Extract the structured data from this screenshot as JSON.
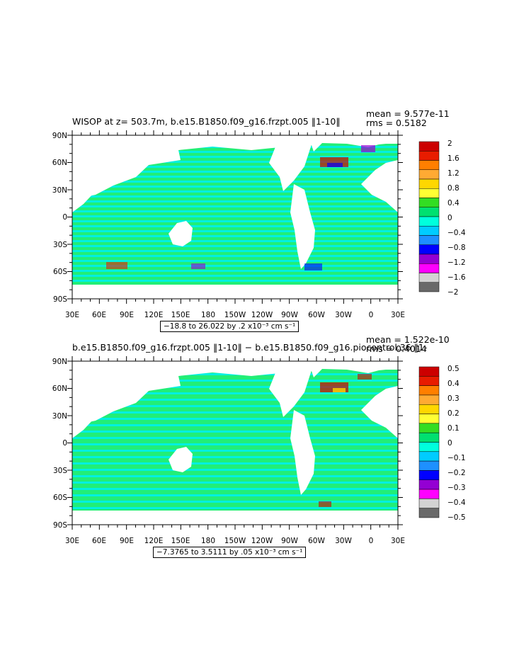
{
  "panels": [
    {
      "title": "WISOP at z= 503.7m, b.e15.B1850.f09_g16.frzpt.005 ‖1-10‖",
      "mean_label": "mean = 9.577e-11",
      "rms_label": "rms = 0.5182",
      "range_label": "−18.8 to 26.022 by .2 x10⁻³ cm s⁻¹",
      "colorbar_labels": [
        "2",
        "1.6",
        "1.2",
        "0.8",
        "0.4",
        "0",
        "−0.4",
        "−0.8",
        "−1.2",
        "−1.6",
        "−2"
      ]
    },
    {
      "title": "b.e15.B1850.f09_g16.frzpt.005 ‖1-10‖ − b.e15.B1850.f09_g16.piocontrol.36 ‖1-",
      "mean_label": "mean = 1.522e-10",
      "rms_label": "rms = 0.4014",
      "range_label": "−7.3765 to 3.5111 by .05 x10⁻³ cm s⁻¹",
      "colorbar_labels": [
        "0.5",
        "0.4",
        "0.3",
        "0.2",
        "0.1",
        "0",
        "−0.1",
        "−0.2",
        "−0.3",
        "−0.4",
        "−0.5"
      ]
    }
  ],
  "axes": {
    "lon_labels": [
      "30E",
      "60E",
      "90E",
      "120E",
      "150E",
      "180",
      "150W",
      "120W",
      "90W",
      "60W",
      "30W",
      "0",
      "30E"
    ],
    "lat_labels": [
      "90N",
      "60N",
      "30N",
      "0",
      "30S",
      "60S",
      "90S"
    ]
  },
  "colors": {
    "scale": [
      "#cc0000",
      "#e81c00",
      "#ff7f00",
      "#ffaa33",
      "#ffd700",
      "#ffff33",
      "#33dd22",
      "#00e070",
      "#00ffdd",
      "#00ccff",
      "#1e90ff",
      "#0000ff",
      "#9400d3",
      "#ff00ff",
      "#d3d3d3",
      "#696969"
    ],
    "ocean_green": "#22ee77",
    "ocean_cyan": "#00f0e0",
    "land": "#ffffff"
  },
  "chart_data": [
    {
      "type": "heatmap",
      "title": "WISOP at z= 503.7m, b.e15.B1850.f09_g16.frzpt.005 ‖1-10‖",
      "x_range": [
        "30E",
        "30E"
      ],
      "y_range": [
        "90S",
        "90N"
      ],
      "colorbar_levels": [
        -2,
        -1.8,
        -1.6,
        -1.4,
        -1.2,
        -1.0,
        -0.8,
        -0.6,
        -0.4,
        -0.2,
        0,
        0.2,
        0.4,
        0.6,
        0.8,
        1.0,
        1.2,
        1.4,
        1.6,
        1.8,
        2
      ],
      "mean": 9.577e-11,
      "rms": 0.5182,
      "data_min": -18.8,
      "data_max": 26.022,
      "contour_interval": 0.2,
      "units": "x10^-3 cm s^-1"
    },
    {
      "type": "heatmap",
      "title": "b.e15.B1850.f09_g16.frzpt.005 ‖1-10‖ − b.e15.B1850.f09_g16.piocontrol.36 ‖1-",
      "x_range": [
        "30E",
        "30E"
      ],
      "y_range": [
        "90S",
        "90N"
      ],
      "colorbar_levels": [
        -0.5,
        -0.45,
        -0.4,
        -0.35,
        -0.3,
        -0.25,
        -0.2,
        -0.15,
        -0.1,
        -0.05,
        0,
        0.05,
        0.1,
        0.15,
        0.2,
        0.25,
        0.3,
        0.35,
        0.4,
        0.45,
        0.5
      ],
      "mean": 1.522e-10,
      "rms": 0.4014,
      "data_min": -7.3765,
      "data_max": 3.5111,
      "contour_interval": 0.05,
      "units": "x10^-3 cm s^-1"
    }
  ]
}
